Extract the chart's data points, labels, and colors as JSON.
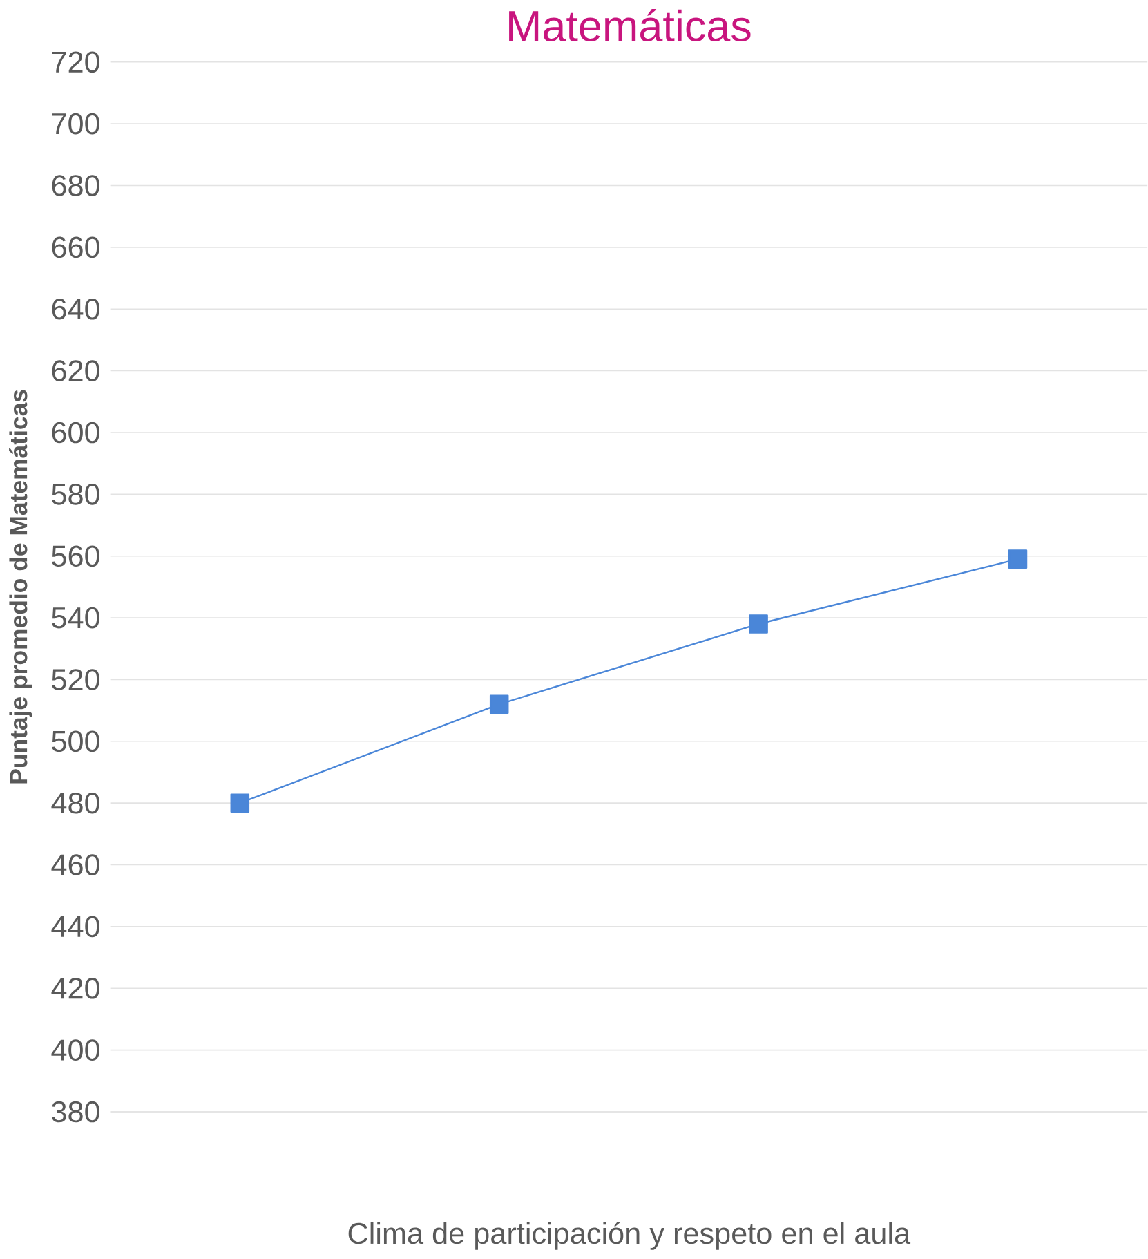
{
  "chart_data": {
    "type": "line",
    "title": "Matemáticas",
    "xlabel": "Clima de participación y respeto en el aula",
    "ylabel": "Puntaje promedio de Matemáticas",
    "categories": [
      null,
      null,
      null,
      null
    ],
    "series": [
      {
        "color": "#4a86d8",
        "values": [
          480,
          512,
          538,
          559
        ]
      }
    ],
    "ylim": [
      380,
      720
    ],
    "yticks": [
      380,
      400,
      420,
      440,
      460,
      480,
      500,
      520,
      540,
      560,
      580,
      600,
      620,
      640,
      660,
      680,
      700,
      720
    ],
    "grid": "y",
    "marker": "square",
    "line_style": "solid"
  }
}
